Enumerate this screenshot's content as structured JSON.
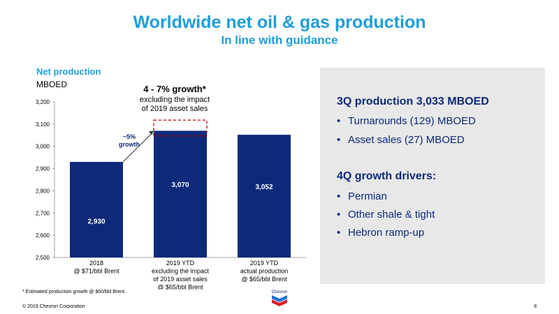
{
  "header": {
    "title": "Worldwide net oil & gas production",
    "subtitle": "In line with guidance"
  },
  "chart_data": {
    "type": "bar",
    "title": "Net production",
    "ylabel": "MBOED",
    "categories": [
      [
        "2018",
        "@ $71/bbl Brent"
      ],
      [
        "2019 YTD",
        "excluding the impact",
        "of 2019 asset sales",
        "@ $65/bbl Brent"
      ],
      [
        "2019 YTD",
        "actual production",
        "@ $65/bbl Brent"
      ]
    ],
    "values": [
      2930,
      3070,
      3052
    ],
    "data_labels": [
      "2,930",
      "3,070",
      "3,052"
    ],
    "ylim": [
      2500,
      3200
    ],
    "yticks": [
      "2,500",
      "2,600",
      "2,700",
      "2,800",
      "2,900",
      "3,000",
      "3,100",
      "3,200"
    ],
    "guidance_range": [
      3047,
      3118
    ],
    "grid": false,
    "bar_color": "#0d2a7a",
    "annotations": {
      "callout_title": "4 - 7% growth*",
      "callout_sub_1": "excluding the impact",
      "callout_sub_2": "of  2019 asset sales",
      "growth_1": "~5%",
      "growth_2": "growth"
    }
  },
  "footnote": "* Estimated production growth @ $60/bbl Brent.",
  "footer": {
    "copyright": "© 2019 Chevron Corporation",
    "page": "8",
    "logo_text": "Chevron"
  },
  "panel": {
    "heading1": "3Q production 3,033 MBOED",
    "items1": [
      "Turnarounds (129) MBOED",
      "Asset sales (27) MBOED"
    ],
    "heading2": "4Q growth drivers:",
    "items2": [
      "Permian",
      "Other shale & tight",
      "Hebron ramp-up"
    ],
    "bullet": "•"
  },
  "colors": {
    "accent": "#1e9ed9",
    "navy": "#0d2a7a",
    "callout_red": "#c00000",
    "panel_bg": "#e8e8e8"
  }
}
